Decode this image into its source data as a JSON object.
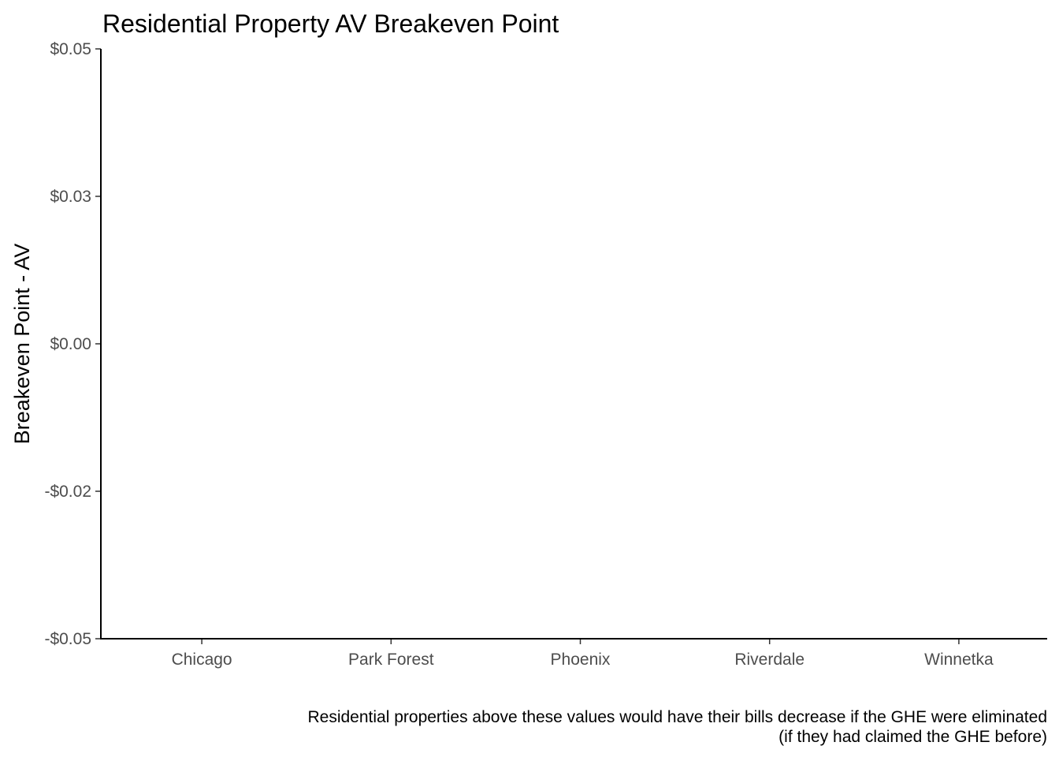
{
  "chart_data": {
    "type": "bar",
    "title": "Residential Property AV Breakeven Point",
    "xlabel": "",
    "ylabel": "Breakeven Point - AV",
    "categories": [
      "Chicago",
      "Park Forest",
      "Phoenix",
      "Riverdale",
      "Winnetka"
    ],
    "values": [
      null,
      null,
      null,
      null,
      null
    ],
    "ylim": [
      -0.05,
      0.05
    ],
    "yticks": [
      0.05,
      0.025,
      0,
      -0.025,
      -0.05
    ],
    "ytick_labels": [
      "$0.05",
      "$0.03",
      "$0.00",
      "-$0.02",
      "-$0.05"
    ],
    "grid": false,
    "legend": "none",
    "caption_lines": [
      "Residential properties above these values would have their bills decrease if the GHE were eliminated",
      "(if they had claimed the GHE before)"
    ]
  }
}
